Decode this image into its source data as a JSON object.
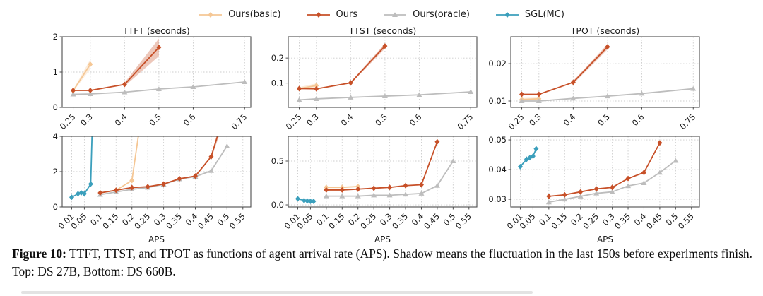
{
  "legend": {
    "items": [
      {
        "label": "Ours(basic)",
        "color": "#F5C795",
        "marker": "diamond"
      },
      {
        "label": "Ours",
        "color": "#C75028",
        "marker": "diamond"
      },
      {
        "label": "Ours(oracle)",
        "color": "#BDBDBD",
        "marker": "triangle"
      },
      {
        "label": "SGL(MC)",
        "color": "#3B9FBC",
        "marker": "diamond"
      }
    ]
  },
  "caption": {
    "prefix": "Figure 10:",
    "text": " TTFT, TTST, and TPOT as functions of agent arrival rate (APS). Shadow means the fluctuation in the last 150s before experiments finish. Top: DS 27B, Bottom: DS 660B."
  },
  "chart_data": [
    {
      "id": "ttft-ds27b",
      "type": "line",
      "title": "TTFT (seconds)",
      "xlabel": "",
      "xlim": [
        0.218,
        0.768
      ],
      "ylim": [
        0,
        2
      ],
      "grid": true,
      "xticks": [
        0.25,
        0.3,
        0.4,
        0.5,
        0.6,
        0.75
      ],
      "xtick_labels": [
        "0.25",
        "0.3",
        "0.4",
        "0.5",
        "0.6",
        "0.75"
      ],
      "yticks": [
        0,
        1,
        2
      ],
      "ytick_labels": [
        "0",
        "1",
        "2"
      ],
      "series": [
        {
          "name": "Ours(basic)",
          "color": "#F5C795",
          "marker": "diamond",
          "x": [
            0.25,
            0.3
          ],
          "y": [
            0.47,
            1.22
          ],
          "band": [
            [
              0.25,
              0.45,
              0.5
            ],
            [
              0.3,
              1.08,
              1.36
            ]
          ]
        },
        {
          "name": "Ours(oracle)",
          "color": "#BDBDBD",
          "marker": "triangle",
          "x": [
            0.25,
            0.3,
            0.4,
            0.5,
            0.6,
            0.75
          ],
          "y": [
            0.37,
            0.38,
            0.43,
            0.52,
            0.58,
            0.72
          ]
        },
        {
          "name": "Ours",
          "color": "#C75028",
          "marker": "diamond",
          "x": [
            0.25,
            0.3,
            0.4,
            0.5
          ],
          "y": [
            0.48,
            0.48,
            0.65,
            1.7
          ],
          "band": [
            [
              0.4,
              0.6,
              0.7
            ],
            [
              0.5,
              1.45,
              1.95
            ]
          ]
        }
      ]
    },
    {
      "id": "ttst-ds27b",
      "type": "line",
      "title": "TTST (seconds)",
      "xlabel": "",
      "xlim": [
        0.218,
        0.768
      ],
      "ylim": [
        0.003,
        0.285
      ],
      "grid": true,
      "xticks": [
        0.25,
        0.3,
        0.4,
        0.5,
        0.6,
        0.75
      ],
      "xtick_labels": [
        "0.25",
        "0.3",
        "0.4",
        "0.5",
        "0.6",
        "0.75"
      ],
      "yticks": [
        0.1,
        0.2
      ],
      "ytick_labels": [
        "0.1",
        "0.2"
      ],
      "series": [
        {
          "name": "Ours(basic)",
          "color": "#F5C795",
          "marker": "diamond",
          "x": [
            0.25,
            0.3
          ],
          "y": [
            0.078,
            0.09
          ],
          "band": [
            [
              0.25,
              0.073,
              0.084
            ],
            [
              0.3,
              0.082,
              0.099
            ]
          ]
        },
        {
          "name": "Ours(oracle)",
          "color": "#BDBDBD",
          "marker": "triangle",
          "x": [
            0.25,
            0.3,
            0.4,
            0.5,
            0.6,
            0.75
          ],
          "y": [
            0.033,
            0.037,
            0.043,
            0.048,
            0.053,
            0.065
          ]
        },
        {
          "name": "Ours",
          "color": "#C75028",
          "marker": "diamond",
          "x": [
            0.25,
            0.3,
            0.4,
            0.5
          ],
          "y": [
            0.078,
            0.077,
            0.101,
            0.248
          ],
          "band": [
            [
              0.4,
              0.097,
              0.105
            ],
            [
              0.5,
              0.238,
              0.258
            ]
          ]
        }
      ]
    },
    {
      "id": "tpot-ds27b",
      "type": "line",
      "title": "TPOT (seconds)",
      "xlabel": "",
      "xlim": [
        0.218,
        0.768
      ],
      "ylim": [
        0.0083,
        0.0272
      ],
      "grid": true,
      "xticks": [
        0.25,
        0.3,
        0.4,
        0.5,
        0.6,
        0.75
      ],
      "xtick_labels": [
        "0.25",
        "0.3",
        "0.4",
        "0.5",
        "0.6",
        "0.75"
      ],
      "yticks": [
        0.01,
        0.02
      ],
      "ytick_labels": [
        "0.01",
        "0.02"
      ],
      "series": [
        {
          "name": "Ours(basic)",
          "color": "#F5C795",
          "marker": "diamond",
          "x": [
            0.25,
            0.3
          ],
          "y": [
            0.0104,
            0.0106
          ],
          "band": [
            [
              0.25,
              0.0101,
              0.0108
            ],
            [
              0.3,
              0.0103,
              0.011
            ]
          ]
        },
        {
          "name": "Ours(oracle)",
          "color": "#BDBDBD",
          "marker": "triangle",
          "x": [
            0.25,
            0.3,
            0.4,
            0.5,
            0.6,
            0.75
          ],
          "y": [
            0.01,
            0.01,
            0.0107,
            0.0113,
            0.012,
            0.0133
          ]
        },
        {
          "name": "Ours",
          "color": "#C75028",
          "marker": "diamond",
          "x": [
            0.25,
            0.3,
            0.4,
            0.5
          ],
          "y": [
            0.0118,
            0.0118,
            0.015,
            0.0245
          ],
          "band": [
            [
              0.4,
              0.0146,
              0.0154
            ],
            [
              0.5,
              0.0238,
              0.0252
            ]
          ]
        }
      ]
    },
    {
      "id": "ttft-ds660b",
      "type": "line",
      "title": "",
      "xlabel": "APS",
      "xlim": [
        -0.02,
        0.575
      ],
      "ylim": [
        0,
        4
      ],
      "grid": true,
      "xticks": [
        0.01,
        0.05,
        0.1,
        0.15,
        0.2,
        0.25,
        0.3,
        0.35,
        0.4,
        0.45,
        0.5,
        0.55
      ],
      "xtick_labels": [
        "0.01",
        "0.05",
        "0.1",
        "0.15",
        "0.2",
        "0.25",
        "0.3",
        "0.35",
        "0.4",
        "0.45",
        "0.5",
        "0.55"
      ],
      "yticks": [
        0,
        2,
        4
      ],
      "ytick_labels": [
        "0",
        "2",
        "4"
      ],
      "series": [
        {
          "name": "Ours(basic)",
          "color": "#F5C795",
          "marker": "diamond",
          "x": [
            0.1,
            0.15,
            0.2,
            0.225
          ],
          "y": [
            0.8,
            0.95,
            1.5,
            4.6
          ],
          "band": [
            [
              0.2,
              1.38,
              1.62
            ],
            [
              0.225,
              4.3,
              4.8
            ]
          ]
        },
        {
          "name": "Ours(oracle)",
          "color": "#BDBDBD",
          "marker": "triangle",
          "x": [
            0.1,
            0.15,
            0.2,
            0.25,
            0.3,
            0.35,
            0.4,
            0.45,
            0.5
          ],
          "y": [
            0.7,
            0.85,
            1.0,
            1.1,
            1.28,
            1.58,
            1.72,
            2.05,
            3.45
          ]
        },
        {
          "name": "Ours",
          "color": "#C75028",
          "marker": "diamond",
          "x": [
            0.1,
            0.15,
            0.2,
            0.25,
            0.3,
            0.35,
            0.4,
            0.45,
            0.48
          ],
          "y": [
            0.8,
            0.95,
            1.1,
            1.15,
            1.3,
            1.6,
            1.75,
            2.85,
            4.6
          ],
          "band": [
            [
              0.45,
              2.72,
              2.98
            ],
            [
              0.48,
              4.3,
              4.8
            ]
          ]
        },
        {
          "name": "SGL(MC)",
          "color": "#3B9FBC",
          "marker": "diamond",
          "x": [
            0.01,
            0.03,
            0.04,
            0.05,
            0.07,
            0.075
          ],
          "y": [
            0.55,
            0.75,
            0.8,
            0.75,
            1.3,
            4.6
          ]
        }
      ]
    },
    {
      "id": "ttst-ds660b",
      "type": "line",
      "title": "",
      "xlabel": "APS",
      "xlim": [
        -0.02,
        0.575
      ],
      "ylim": [
        -0.024,
        0.782
      ],
      "grid": true,
      "xticks": [
        0.01,
        0.05,
        0.1,
        0.15,
        0.2,
        0.25,
        0.3,
        0.35,
        0.4,
        0.45,
        0.5,
        0.55
      ],
      "xtick_labels": [
        "0.01",
        "0.05",
        "0.1",
        "0.15",
        "0.2",
        "0.25",
        "0.3",
        "0.35",
        "0.4",
        "0.45",
        "0.5",
        "0.55"
      ],
      "yticks": [
        0.0,
        0.5
      ],
      "ytick_labels": [
        "0.0",
        "0.5"
      ],
      "series": [
        {
          "name": "Ours(basic)",
          "color": "#F5C795",
          "marker": "diamond",
          "x": [
            0.1,
            0.15,
            0.2
          ],
          "y": [
            0.2,
            0.2,
            0.21
          ]
        },
        {
          "name": "Ours(oracle)",
          "color": "#BDBDBD",
          "marker": "triangle",
          "x": [
            0.1,
            0.15,
            0.2,
            0.25,
            0.3,
            0.35,
            0.4,
            0.45,
            0.5
          ],
          "y": [
            0.1,
            0.1,
            0.1,
            0.11,
            0.11,
            0.12,
            0.13,
            0.22,
            0.5
          ]
        },
        {
          "name": "Ours",
          "color": "#C75028",
          "marker": "diamond",
          "x": [
            0.1,
            0.15,
            0.2,
            0.25,
            0.3,
            0.35,
            0.4,
            0.45
          ],
          "y": [
            0.17,
            0.17,
            0.18,
            0.19,
            0.2,
            0.22,
            0.23,
            0.72
          ]
        },
        {
          "name": "SGL(MC)",
          "color": "#3B9FBC",
          "marker": "diamond",
          "x": [
            0.01,
            0.03,
            0.04,
            0.05,
            0.06
          ],
          "y": [
            0.07,
            0.05,
            0.045,
            0.04,
            0.04
          ]
        }
      ]
    },
    {
      "id": "tpot-ds660b",
      "type": "line",
      "title": "",
      "xlabel": "APS",
      "xlim": [
        -0.02,
        0.575
      ],
      "ylim": [
        0.0274,
        0.0512
      ],
      "grid": true,
      "xticks": [
        0.01,
        0.05,
        0.1,
        0.15,
        0.2,
        0.25,
        0.3,
        0.35,
        0.4,
        0.45,
        0.5,
        0.55
      ],
      "xtick_labels": [
        "0.01",
        "0.05",
        "0.1",
        "0.15",
        "0.2",
        "0.25",
        "0.3",
        "0.35",
        "0.4",
        "0.45",
        "0.5",
        "0.55"
      ],
      "yticks": [
        0.03,
        0.04,
        0.05
      ],
      "ytick_labels": [
        "0.03",
        "0.04",
        "0.05"
      ],
      "series": [
        {
          "name": "Ours(oracle)",
          "color": "#BDBDBD",
          "marker": "triangle",
          "x": [
            0.1,
            0.15,
            0.2,
            0.25,
            0.3,
            0.35,
            0.4,
            0.45,
            0.5
          ],
          "y": [
            0.029,
            0.03,
            0.031,
            0.032,
            0.0325,
            0.0345,
            0.0355,
            0.039,
            0.043
          ]
        },
        {
          "name": "Ours",
          "color": "#C75028",
          "marker": "diamond",
          "x": [
            0.1,
            0.15,
            0.2,
            0.25,
            0.3,
            0.35,
            0.4,
            0.45
          ],
          "y": [
            0.031,
            0.0315,
            0.0325,
            0.0335,
            0.034,
            0.037,
            0.039,
            0.049
          ]
        },
        {
          "name": "SGL(MC)",
          "color": "#3B9FBC",
          "marker": "diamond",
          "x": [
            0.01,
            0.03,
            0.04,
            0.05,
            0.06
          ],
          "y": [
            0.041,
            0.0435,
            0.044,
            0.0445,
            0.047
          ]
        }
      ]
    }
  ]
}
